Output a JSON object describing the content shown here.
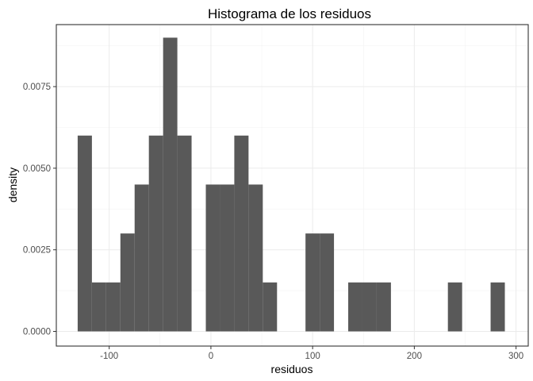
{
  "chart_data": {
    "type": "bar",
    "subtype": "histogram",
    "title": "Histograma de los residuos",
    "xlabel": "residuos",
    "ylabel": "density",
    "xlim": [
      -152,
      312
    ],
    "ylim": [
      -0.00045,
      0.0094
    ],
    "x_ticks": [
      -100,
      0,
      100,
      200,
      300
    ],
    "x_tick_labels": [
      "-100",
      "0",
      "100",
      "200",
      "300"
    ],
    "y_ticks": [
      0,
      0.0025,
      0.005,
      0.0075
    ],
    "y_tick_labels": [
      "0.0000",
      "0.0025",
      "0.0050",
      "0.0075"
    ],
    "x_minor": [
      -50,
      50,
      150,
      250
    ],
    "y_minor": [
      0.00125,
      0.00375,
      0.00625,
      0.00875
    ],
    "bar_color": "#595959",
    "bins": [
      {
        "x0": -131,
        "x1": -117,
        "density": 0.006
      },
      {
        "x0": -117,
        "x1": -103,
        "density": 0.0015
      },
      {
        "x0": -103,
        "x1": -89,
        "density": 0.0015
      },
      {
        "x0": -89,
        "x1": -75,
        "density": 0.003
      },
      {
        "x0": -75,
        "x1": -61,
        "density": 0.0045
      },
      {
        "x0": -61,
        "x1": -47,
        "density": 0.006
      },
      {
        "x0": -47,
        "x1": -33,
        "density": 0.009
      },
      {
        "x0": -33,
        "x1": -19,
        "density": 0.006
      },
      {
        "x0": -19,
        "x1": -5,
        "density": 0
      },
      {
        "x0": -5,
        "x1": 9,
        "density": 0.0045
      },
      {
        "x0": 9,
        "x1": 23,
        "density": 0.0045
      },
      {
        "x0": 23,
        "x1": 37,
        "density": 0.006
      },
      {
        "x0": 37,
        "x1": 51,
        "density": 0.0045
      },
      {
        "x0": 51,
        "x1": 65,
        "density": 0.0015
      },
      {
        "x0": 65,
        "x1": 79,
        "density": 0
      },
      {
        "x0": 79,
        "x1": 93,
        "density": 0
      },
      {
        "x0": 93,
        "x1": 107,
        "density": 0.003
      },
      {
        "x0": 107,
        "x1": 121,
        "density": 0.003
      },
      {
        "x0": 121,
        "x1": 135,
        "density": 0
      },
      {
        "x0": 135,
        "x1": 149,
        "density": 0.0015
      },
      {
        "x0": 149,
        "x1": 163,
        "density": 0.0015
      },
      {
        "x0": 163,
        "x1": 177,
        "density": 0.0015
      },
      {
        "x0": 177,
        "x1": 191,
        "density": 0
      },
      {
        "x0": 191,
        "x1": 205,
        "density": 0
      },
      {
        "x0": 205,
        "x1": 219,
        "density": 0
      },
      {
        "x0": 219,
        "x1": 233,
        "density": 0
      },
      {
        "x0": 233,
        "x1": 247,
        "density": 0.0015
      },
      {
        "x0": 247,
        "x1": 261,
        "density": 0
      },
      {
        "x0": 261,
        "x1": 275,
        "density": 0
      },
      {
        "x0": 275,
        "x1": 289,
        "density": 0.0015
      }
    ]
  }
}
